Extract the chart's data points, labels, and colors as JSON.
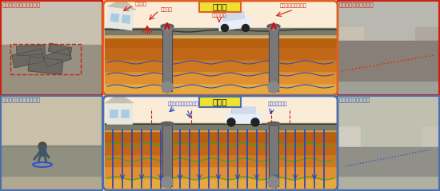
{
  "bg_color": "#f0ede5",
  "title_unmeasured": "未対策",
  "title_measured": "対策済",
  "label_tl": "浮き上がったマンホール",
  "label_tr": "路面が陥没した管路部",
  "label_bl": "ドレーン設置マンホール",
  "label_br": "ドレーン設置管路部",
  "label_house": "傾く家屋",
  "label_sand": "噴砂現象",
  "label_sinking": "路面の陥没",
  "label_float_mh": "浮上したマンホール",
  "label_drain_band": "設置したドレーン消散帯",
  "label_pore_water": "消散する間隙水",
  "unmeasured_border": "#e06020",
  "measured_border": "#4a6faa",
  "photo_border_red": "#cc2010",
  "photo_border_blue": "#4a6faa",
  "label_color_red": "#cc2010",
  "label_color_blue": "#3355aa",
  "title_box_yellow": "#f0e030",
  "annotation_red": "#cc2010",
  "annotation_blue": "#2244cc"
}
